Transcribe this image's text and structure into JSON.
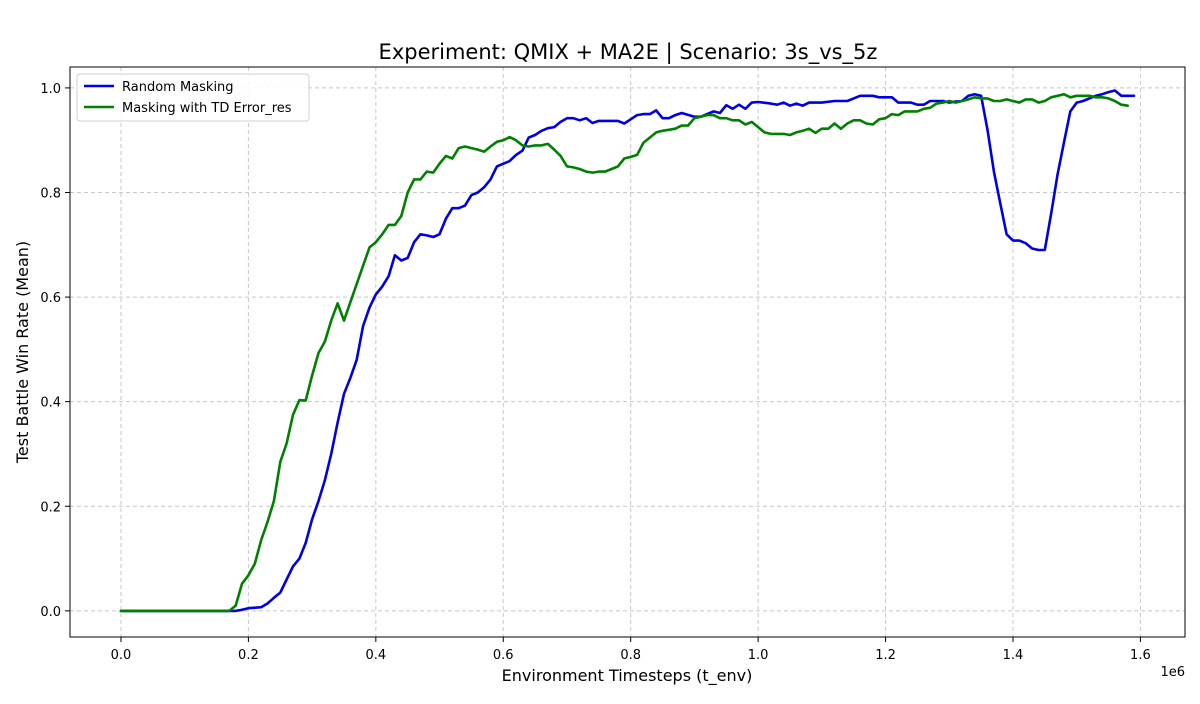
{
  "chart_data": {
    "type": "line",
    "title": "Experiment: QMIX + MA2E | Scenario: 3s_vs_5z",
    "xlabel": "Environment Timesteps (t_env)",
    "ylabel": "Test Battle Win Rate (Mean)",
    "x_offset_label": "1e6",
    "xlim": [
      -0.08,
      1.67
    ],
    "ylim": [
      -0.05,
      1.04
    ],
    "x_ticks": [
      0.0,
      0.2,
      0.4,
      0.6,
      0.8,
      1.0,
      1.2,
      1.4,
      1.6
    ],
    "x_tick_labels": [
      "0.0",
      "0.2",
      "0.4",
      "0.6",
      "0.8",
      "1.0",
      "1.2",
      "1.4",
      "1.6"
    ],
    "y_ticks": [
      0.0,
      0.2,
      0.4,
      0.6,
      0.8,
      1.0
    ],
    "y_tick_labels": [
      "0.0",
      "0.2",
      "0.4",
      "0.6",
      "0.8",
      "1.0"
    ],
    "grid": true,
    "legend_position": "upper-left",
    "series": [
      {
        "name": "Random Masking",
        "color": "#0000e0",
        "points": [
          [
            0.0,
            0.0
          ],
          [
            0.1,
            0.0
          ],
          [
            0.18,
            0.0
          ],
          [
            0.19,
            0.002
          ],
          [
            0.2,
            0.005
          ],
          [
            0.22,
            0.007
          ],
          [
            0.23,
            0.014
          ],
          [
            0.24,
            0.025
          ],
          [
            0.25,
            0.035
          ],
          [
            0.26,
            0.06
          ],
          [
            0.27,
            0.085
          ],
          [
            0.28,
            0.1
          ],
          [
            0.29,
            0.13
          ],
          [
            0.3,
            0.175
          ],
          [
            0.31,
            0.21
          ],
          [
            0.32,
            0.25
          ],
          [
            0.33,
            0.3
          ],
          [
            0.34,
            0.36
          ],
          [
            0.35,
            0.415
          ],
          [
            0.36,
            0.445
          ],
          [
            0.37,
            0.48
          ],
          [
            0.38,
            0.545
          ],
          [
            0.39,
            0.58
          ],
          [
            0.4,
            0.605
          ],
          [
            0.41,
            0.62
          ],
          [
            0.42,
            0.64
          ],
          [
            0.43,
            0.68
          ],
          [
            0.44,
            0.67
          ],
          [
            0.45,
            0.675
          ],
          [
            0.46,
            0.705
          ],
          [
            0.47,
            0.72
          ],
          [
            0.48,
            0.718
          ],
          [
            0.49,
            0.715
          ],
          [
            0.5,
            0.72
          ],
          [
            0.51,
            0.75
          ],
          [
            0.52,
            0.77
          ],
          [
            0.53,
            0.77
          ],
          [
            0.54,
            0.775
          ],
          [
            0.55,
            0.795
          ],
          [
            0.56,
            0.8
          ],
          [
            0.57,
            0.81
          ],
          [
            0.58,
            0.825
          ],
          [
            0.59,
            0.85
          ],
          [
            0.6,
            0.855
          ],
          [
            0.61,
            0.86
          ],
          [
            0.62,
            0.872
          ],
          [
            0.63,
            0.88
          ],
          [
            0.64,
            0.905
          ],
          [
            0.65,
            0.91
          ],
          [
            0.66,
            0.918
          ],
          [
            0.67,
            0.923
          ],
          [
            0.68,
            0.925
          ],
          [
            0.69,
            0.935
          ],
          [
            0.7,
            0.942
          ],
          [
            0.71,
            0.942
          ],
          [
            0.72,
            0.938
          ],
          [
            0.73,
            0.942
          ],
          [
            0.74,
            0.933
          ],
          [
            0.75,
            0.937
          ],
          [
            0.76,
            0.937
          ],
          [
            0.78,
            0.937
          ],
          [
            0.79,
            0.932
          ],
          [
            0.8,
            0.94
          ],
          [
            0.81,
            0.948
          ],
          [
            0.82,
            0.95
          ],
          [
            0.83,
            0.95
          ],
          [
            0.84,
            0.957
          ],
          [
            0.85,
            0.942
          ],
          [
            0.86,
            0.942
          ],
          [
            0.87,
            0.948
          ],
          [
            0.88,
            0.952
          ],
          [
            0.9,
            0.945
          ],
          [
            0.91,
            0.945
          ],
          [
            0.92,
            0.95
          ],
          [
            0.93,
            0.955
          ],
          [
            0.94,
            0.952
          ],
          [
            0.95,
            0.967
          ],
          [
            0.96,
            0.96
          ],
          [
            0.97,
            0.968
          ],
          [
            0.98,
            0.96
          ],
          [
            0.99,
            0.972
          ],
          [
            1.0,
            0.973
          ],
          [
            1.02,
            0.97
          ],
          [
            1.03,
            0.968
          ],
          [
            1.04,
            0.972
          ],
          [
            1.05,
            0.966
          ],
          [
            1.06,
            0.97
          ],
          [
            1.07,
            0.966
          ],
          [
            1.08,
            0.972
          ],
          [
            1.1,
            0.972
          ],
          [
            1.12,
            0.975
          ],
          [
            1.14,
            0.975
          ],
          [
            1.15,
            0.98
          ],
          [
            1.16,
            0.985
          ],
          [
            1.18,
            0.985
          ],
          [
            1.19,
            0.982
          ],
          [
            1.21,
            0.982
          ],
          [
            1.22,
            0.972
          ],
          [
            1.24,
            0.972
          ],
          [
            1.25,
            0.968
          ],
          [
            1.26,
            0.968
          ],
          [
            1.27,
            0.975
          ],
          [
            1.29,
            0.975
          ],
          [
            1.3,
            0.972
          ],
          [
            1.31,
            0.974
          ],
          [
            1.32,
            0.975
          ],
          [
            1.33,
            0.985
          ],
          [
            1.34,
            0.988
          ],
          [
            1.35,
            0.985
          ],
          [
            1.36,
            0.92
          ],
          [
            1.37,
            0.84
          ],
          [
            1.38,
            0.78
          ],
          [
            1.39,
            0.72
          ],
          [
            1.4,
            0.708
          ],
          [
            1.41,
            0.708
          ],
          [
            1.42,
            0.703
          ],
          [
            1.43,
            0.693
          ],
          [
            1.44,
            0.69
          ],
          [
            1.45,
            0.69
          ],
          [
            1.46,
            0.76
          ],
          [
            1.47,
            0.835
          ],
          [
            1.48,
            0.895
          ],
          [
            1.49,
            0.955
          ],
          [
            1.5,
            0.972
          ],
          [
            1.51,
            0.975
          ],
          [
            1.52,
            0.98
          ],
          [
            1.53,
            0.985
          ],
          [
            1.54,
            0.988
          ],
          [
            1.55,
            0.992
          ],
          [
            1.56,
            0.995
          ],
          [
            1.57,
            0.985
          ],
          [
            1.58,
            0.985
          ],
          [
            1.59,
            0.985
          ]
        ]
      },
      {
        "name": "Masking with TD Error_res",
        "color": "#008000",
        "points": [
          [
            0.0,
            0.0
          ],
          [
            0.1,
            0.0
          ],
          [
            0.17,
            0.0
          ],
          [
            0.18,
            0.01
          ],
          [
            0.19,
            0.052
          ],
          [
            0.2,
            0.068
          ],
          [
            0.21,
            0.09
          ],
          [
            0.22,
            0.135
          ],
          [
            0.23,
            0.17
          ],
          [
            0.24,
            0.21
          ],
          [
            0.25,
            0.285
          ],
          [
            0.26,
            0.32
          ],
          [
            0.27,
            0.375
          ],
          [
            0.28,
            0.403
          ],
          [
            0.29,
            0.402
          ],
          [
            0.3,
            0.45
          ],
          [
            0.31,
            0.493
          ],
          [
            0.32,
            0.515
          ],
          [
            0.33,
            0.555
          ],
          [
            0.34,
            0.588
          ],
          [
            0.35,
            0.555
          ],
          [
            0.36,
            0.59
          ],
          [
            0.37,
            0.625
          ],
          [
            0.38,
            0.66
          ],
          [
            0.39,
            0.695
          ],
          [
            0.4,
            0.705
          ],
          [
            0.41,
            0.72
          ],
          [
            0.42,
            0.738
          ],
          [
            0.43,
            0.738
          ],
          [
            0.44,
            0.755
          ],
          [
            0.45,
            0.8
          ],
          [
            0.46,
            0.825
          ],
          [
            0.47,
            0.825
          ],
          [
            0.48,
            0.84
          ],
          [
            0.49,
            0.838
          ],
          [
            0.5,
            0.855
          ],
          [
            0.51,
            0.87
          ],
          [
            0.52,
            0.865
          ],
          [
            0.53,
            0.885
          ],
          [
            0.54,
            0.888
          ],
          [
            0.55,
            0.885
          ],
          [
            0.56,
            0.882
          ],
          [
            0.57,
            0.878
          ],
          [
            0.58,
            0.888
          ],
          [
            0.59,
            0.897
          ],
          [
            0.6,
            0.9
          ],
          [
            0.61,
            0.906
          ],
          [
            0.62,
            0.9
          ],
          [
            0.63,
            0.89
          ],
          [
            0.64,
            0.888
          ],
          [
            0.65,
            0.89
          ],
          [
            0.66,
            0.89
          ],
          [
            0.67,
            0.893
          ],
          [
            0.68,
            0.882
          ],
          [
            0.69,
            0.87
          ],
          [
            0.7,
            0.85
          ],
          [
            0.71,
            0.848
          ],
          [
            0.72,
            0.845
          ],
          [
            0.73,
            0.84
          ],
          [
            0.74,
            0.838
          ],
          [
            0.75,
            0.84
          ],
          [
            0.76,
            0.84
          ],
          [
            0.77,
            0.845
          ],
          [
            0.78,
            0.85
          ],
          [
            0.79,
            0.865
          ],
          [
            0.8,
            0.868
          ],
          [
            0.81,
            0.872
          ],
          [
            0.82,
            0.895
          ],
          [
            0.83,
            0.905
          ],
          [
            0.84,
            0.915
          ],
          [
            0.85,
            0.918
          ],
          [
            0.86,
            0.92
          ],
          [
            0.87,
            0.922
          ],
          [
            0.88,
            0.928
          ],
          [
            0.89,
            0.928
          ],
          [
            0.9,
            0.942
          ],
          [
            0.91,
            0.945
          ],
          [
            0.92,
            0.948
          ],
          [
            0.93,
            0.948
          ],
          [
            0.94,
            0.942
          ],
          [
            0.95,
            0.942
          ],
          [
            0.96,
            0.938
          ],
          [
            0.97,
            0.938
          ],
          [
            0.98,
            0.93
          ],
          [
            0.99,
            0.935
          ],
          [
            1.0,
            0.925
          ],
          [
            1.01,
            0.915
          ],
          [
            1.02,
            0.912
          ],
          [
            1.04,
            0.912
          ],
          [
            1.05,
            0.91
          ],
          [
            1.06,
            0.915
          ],
          [
            1.07,
            0.918
          ],
          [
            1.08,
            0.922
          ],
          [
            1.09,
            0.914
          ],
          [
            1.1,
            0.922
          ],
          [
            1.11,
            0.922
          ],
          [
            1.12,
            0.932
          ],
          [
            1.13,
            0.922
          ],
          [
            1.14,
            0.932
          ],
          [
            1.15,
            0.938
          ],
          [
            1.16,
            0.938
          ],
          [
            1.17,
            0.932
          ],
          [
            1.18,
            0.93
          ],
          [
            1.19,
            0.94
          ],
          [
            1.2,
            0.942
          ],
          [
            1.21,
            0.95
          ],
          [
            1.22,
            0.948
          ],
          [
            1.23,
            0.955
          ],
          [
            1.24,
            0.955
          ],
          [
            1.25,
            0.955
          ],
          [
            1.26,
            0.96
          ],
          [
            1.27,
            0.962
          ],
          [
            1.28,
            0.97
          ],
          [
            1.29,
            0.972
          ],
          [
            1.3,
            0.975
          ],
          [
            1.31,
            0.972
          ],
          [
            1.32,
            0.975
          ],
          [
            1.33,
            0.978
          ],
          [
            1.34,
            0.982
          ],
          [
            1.35,
            0.98
          ],
          [
            1.36,
            0.98
          ],
          [
            1.37,
            0.975
          ],
          [
            1.38,
            0.975
          ],
          [
            1.39,
            0.978
          ],
          [
            1.4,
            0.975
          ],
          [
            1.41,
            0.972
          ],
          [
            1.42,
            0.978
          ],
          [
            1.43,
            0.978
          ],
          [
            1.44,
            0.972
          ],
          [
            1.45,
            0.975
          ],
          [
            1.46,
            0.982
          ],
          [
            1.47,
            0.985
          ],
          [
            1.48,
            0.988
          ],
          [
            1.49,
            0.982
          ],
          [
            1.5,
            0.985
          ],
          [
            1.51,
            0.985
          ],
          [
            1.52,
            0.985
          ],
          [
            1.53,
            0.982
          ],
          [
            1.54,
            0.982
          ],
          [
            1.55,
            0.98
          ],
          [
            1.56,
            0.975
          ],
          [
            1.57,
            0.968
          ],
          [
            1.58,
            0.966
          ]
        ]
      }
    ]
  }
}
